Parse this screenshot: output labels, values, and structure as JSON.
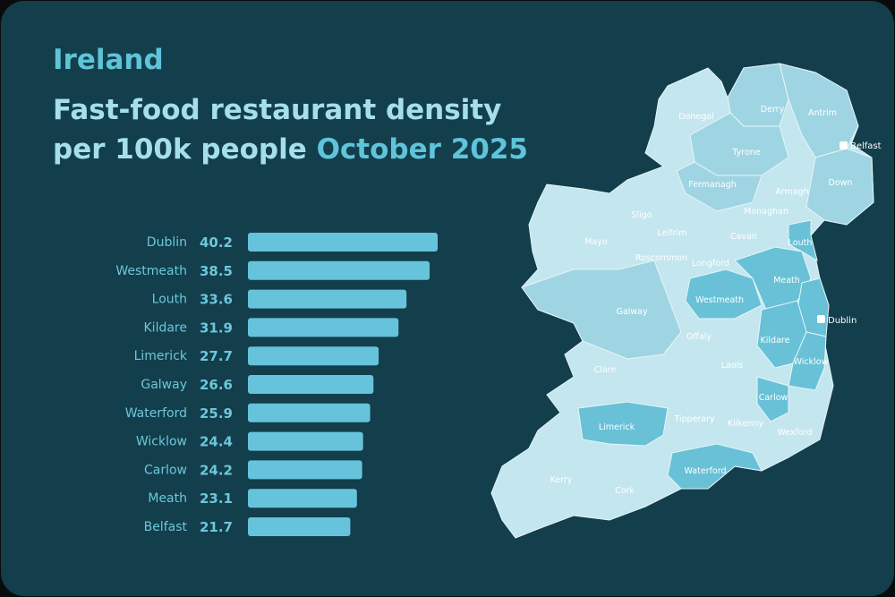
{
  "title": "Ireland",
  "subtitle_line1": "Fast-food restaurant density",
  "subtitle_line2_main": "per 100k people",
  "subtitle_line2_highlight": "October 2025",
  "colors": {
    "background": "#133e4b",
    "bar": "#66c3db",
    "map_light": "#c4e6ee",
    "map_mid": "#9fd5e2",
    "map_dark": "#68c1d7"
  },
  "chart_data": {
    "type": "bar",
    "orientation": "horizontal",
    "categories": [
      "Dublin",
      "Westmeath",
      "Louth",
      "Kildare",
      "Limerick",
      "Galway",
      "Waterford",
      "Wicklow",
      "Carlow",
      "Meath",
      "Belfast"
    ],
    "values": [
      40.2,
      38.5,
      33.6,
      31.9,
      27.7,
      26.6,
      25.9,
      24.4,
      24.2,
      23.1,
      21.7
    ],
    "value_labels": [
      "40.2",
      "38.5",
      "33.6",
      "31.9",
      "27.7",
      "26.6",
      "25.9",
      "24.4",
      "24.2",
      "23.1",
      "21.7"
    ],
    "grid": false
  },
  "map": {
    "counties": [
      "Donegal",
      "Derry",
      "Antrim",
      "Tyrone",
      "Fermanagh",
      "Armagh",
      "Down",
      "Sligo",
      "Mayo",
      "Leitrim",
      "Monaghan",
      "Cavan",
      "Louth",
      "Roscommon",
      "Longford",
      "Meath",
      "Westmeath",
      "Galway",
      "Offaly",
      "Kildare",
      "Laois",
      "Wicklow",
      "Clare",
      "Carlow",
      "Tipperary",
      "Kilkenny",
      "Limerick",
      "Wexford",
      "Kerry",
      "Cork",
      "Waterford"
    ],
    "cities": [
      "Belfast",
      "Dublin"
    ]
  }
}
